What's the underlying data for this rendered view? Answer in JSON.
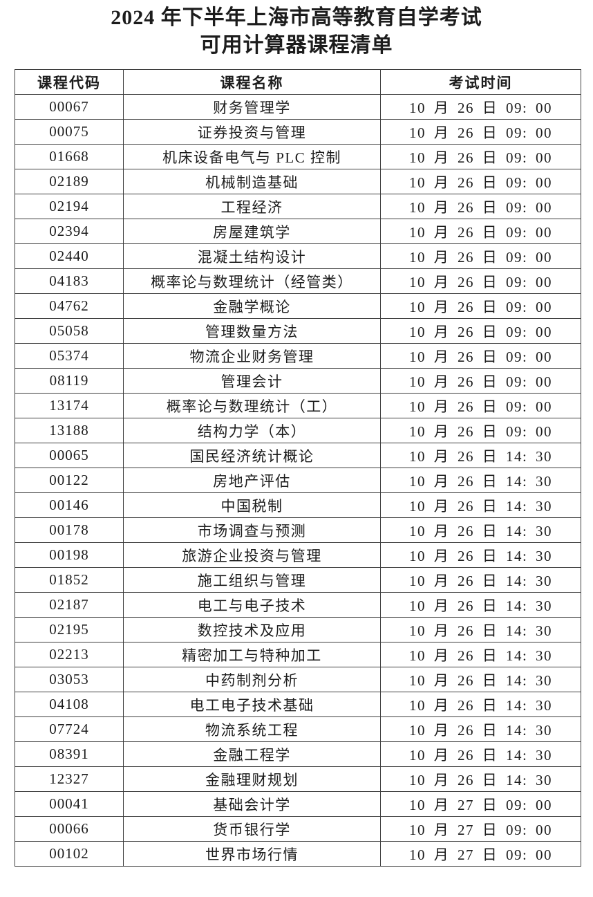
{
  "page": {
    "title_line1": "2024 年下半年上海市高等教育自学考试",
    "title_line2": "可用计算器课程清单"
  },
  "colors": {
    "text": "#1c1c1c",
    "border": "#3d3d3d",
    "background": "#ffffff"
  },
  "table": {
    "headers": [
      "课程代码",
      "课程名称",
      "考试时间"
    ],
    "rows": [
      [
        "00067",
        "财务管理学",
        "10 月 26 日 09: 00"
      ],
      [
        "00075",
        "证券投资与管理",
        "10 月 26 日 09: 00"
      ],
      [
        "01668",
        "机床设备电气与 PLC 控制",
        "10 月 26 日 09: 00"
      ],
      [
        "02189",
        "机械制造基础",
        "10 月 26 日 09: 00"
      ],
      [
        "02194",
        "工程经济",
        "10 月 26 日 09: 00"
      ],
      [
        "02394",
        "房屋建筑学",
        "10 月 26 日 09: 00"
      ],
      [
        "02440",
        "混凝土结构设计",
        "10 月 26 日 09: 00"
      ],
      [
        "04183",
        "概率论与数理统计（经管类）",
        "10 月 26 日 09: 00"
      ],
      [
        "04762",
        "金融学概论",
        "10 月 26 日 09: 00"
      ],
      [
        "05058",
        "管理数量方法",
        "10 月 26 日 09: 00"
      ],
      [
        "05374",
        "物流企业财务管理",
        "10 月 26 日 09: 00"
      ],
      [
        "08119",
        "管理会计",
        "10 月 26 日 09: 00"
      ],
      [
        "13174",
        "概率论与数理统计（工）",
        "10 月 26 日 09: 00"
      ],
      [
        "13188",
        "结构力学（本）",
        "10 月 26 日 09: 00"
      ],
      [
        "00065",
        "国民经济统计概论",
        "10 月 26 日 14: 30"
      ],
      [
        "00122",
        "房地产评估",
        "10 月 26 日 14: 30"
      ],
      [
        "00146",
        "中国税制",
        "10 月 26 日 14: 30"
      ],
      [
        "00178",
        "市场调查与预测",
        "10 月 26 日 14: 30"
      ],
      [
        "00198",
        "旅游企业投资与管理",
        "10 月 26 日 14: 30"
      ],
      [
        "01852",
        "施工组织与管理",
        "10 月 26 日 14: 30"
      ],
      [
        "02187",
        "电工与电子技术",
        "10 月 26 日 14: 30"
      ],
      [
        "02195",
        "数控技术及应用",
        "10 月 26 日 14: 30"
      ],
      [
        "02213",
        "精密加工与特种加工",
        "10 月 26 日 14: 30"
      ],
      [
        "03053",
        "中药制剂分析",
        "10 月 26 日 14: 30"
      ],
      [
        "04108",
        "电工电子技术基础",
        "10 月 26 日 14: 30"
      ],
      [
        "07724",
        "物流系统工程",
        "10 月 26 日 14: 30"
      ],
      [
        "08391",
        "金融工程学",
        "10 月 26 日 14: 30"
      ],
      [
        "12327",
        "金融理财规划",
        "10 月 26 日 14: 30"
      ],
      [
        "00041",
        "基础会计学",
        "10 月 27 日 09: 00"
      ],
      [
        "00066",
        "货币银行学",
        "10 月 27 日 09: 00"
      ],
      [
        "00102",
        "世界市场行情",
        "10 月 27 日 09: 00"
      ]
    ]
  }
}
